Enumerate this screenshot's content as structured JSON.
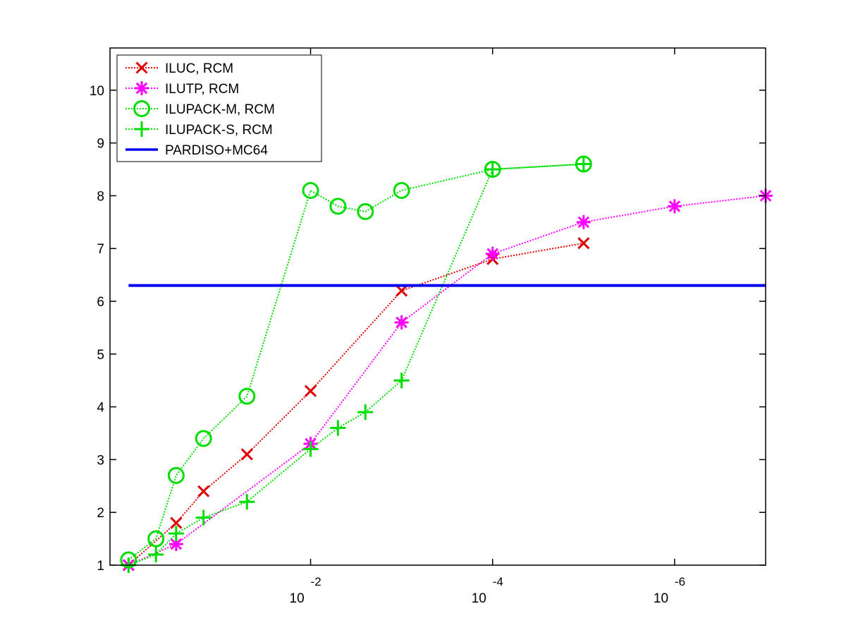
{
  "chart_data": {
    "type": "line",
    "title": "",
    "xlabel": "",
    "ylabel": "",
    "x_scale": "log-reversed",
    "xlim": [
      1.6,
      1e-07
    ],
    "ylim": [
      1,
      10.8
    ],
    "x_ticks": [
      {
        "value": 0.01,
        "base": "10",
        "exp": "-2"
      },
      {
        "value": 0.0001,
        "base": "10",
        "exp": "-4"
      },
      {
        "value": 1e-06,
        "base": "10",
        "exp": "-6"
      }
    ],
    "y_ticks": [
      "1",
      "2",
      "3",
      "4",
      "5",
      "6",
      "7",
      "8",
      "9",
      "10"
    ],
    "grid": false,
    "legend_position": "top-left",
    "series": [
      {
        "name": "ILUC, RCM",
        "color": "#e00000",
        "marker": "x",
        "line_style": "dotted",
        "points": [
          [
            1.0,
            1.0
          ],
          [
            0.3,
            1.8
          ],
          [
            0.15,
            2.4
          ],
          [
            0.05,
            3.1
          ],
          [
            0.01,
            4.3
          ],
          [
            0.001,
            6.2
          ],
          [
            0.0001,
            6.8
          ],
          [
            1e-05,
            7.1
          ]
        ]
      },
      {
        "name": "ILUTP, RCM",
        "color": "#ff00ff",
        "marker": "asterisk",
        "line_style": "dotted",
        "points": [
          [
            1.0,
            1.0
          ],
          [
            0.3,
            1.4
          ],
          [
            0.01,
            3.3
          ],
          [
            0.001,
            5.6
          ],
          [
            0.0001,
            6.9
          ],
          [
            1e-05,
            7.5
          ],
          [
            1e-06,
            7.8
          ],
          [
            1e-07,
            8.0
          ]
        ]
      },
      {
        "name": "ILUPACK-M, RCM",
        "color": "#00dd00",
        "marker": "circle",
        "line_style": "dotted",
        "points": [
          [
            1.0,
            1.1
          ],
          [
            0.5,
            1.5
          ],
          [
            0.3,
            2.7
          ],
          [
            0.15,
            3.4
          ],
          [
            0.05,
            4.2
          ],
          [
            0.01,
            8.1
          ],
          [
            0.005,
            7.8
          ],
          [
            0.0025,
            7.7
          ],
          [
            0.001,
            8.1
          ],
          [
            0.0001,
            8.5
          ],
          [
            1e-05,
            8.6
          ]
        ]
      },
      {
        "name": "ILUPACK-S, RCM",
        "color": "#00dd00",
        "marker": "plus",
        "line_style": "dotted",
        "points": [
          [
            1.0,
            1.0
          ],
          [
            0.5,
            1.2
          ],
          [
            0.3,
            1.6
          ],
          [
            0.15,
            1.9
          ],
          [
            0.05,
            2.2
          ],
          [
            0.01,
            3.2
          ],
          [
            0.005,
            3.6
          ],
          [
            0.0025,
            3.9
          ],
          [
            0.001,
            4.5
          ],
          [
            0.0001,
            8.5
          ],
          [
            1e-05,
            8.6
          ]
        ]
      },
      {
        "name": "PARDISO+MC64",
        "color": "#0000ee",
        "marker": "none",
        "line_style": "solid",
        "constant": 6.3
      }
    ]
  }
}
